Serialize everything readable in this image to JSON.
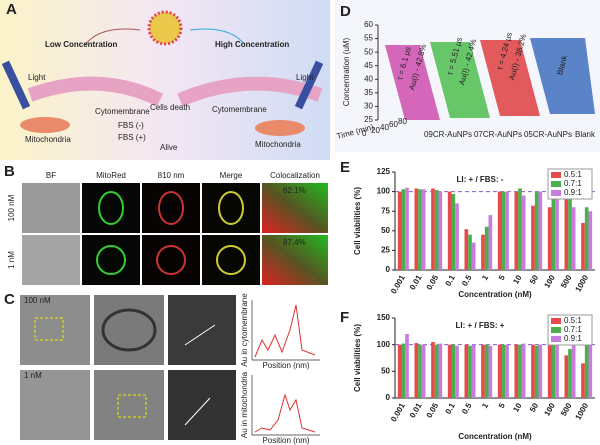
{
  "panel_a": {
    "label": "A",
    "low": "Low Concentration",
    "high": "High Concentration",
    "cytomembrane_left": "Cytomembrane",
    "cytomembrane_right": "Cytomembrane",
    "mito_left": "Mitochondria",
    "mito_right": "Mitochondria",
    "cells_death": "Cells death",
    "alive": "Alive",
    "fbs_minus": "FBS (-)",
    "fbs_plus": "FBS (+)",
    "light_left": "Light",
    "light_right": "Light"
  },
  "panel_b": {
    "label": "B",
    "columns": [
      "BF",
      "MitoRed",
      "810 nm",
      "Merge",
      "Colocalization"
    ],
    "rows": [
      "100 nM",
      "1 nM"
    ],
    "colocalization": [
      "62.1%",
      "87.4%"
    ]
  },
  "panel_c": {
    "label": "C",
    "rows": [
      "100 nM",
      "1 nM"
    ],
    "plot_ylabels": [
      "Au in cytomembrane",
      "Au in mitochondria"
    ],
    "plot_xlabel": "Position (nm)"
  },
  "panel_d": {
    "label": "D",
    "ylabel": "Concentration (uM)",
    "xlabel": "Time (min)",
    "ylim": [
      25,
      60
    ],
    "yticks": [
      25,
      30,
      35,
      40,
      45,
      50,
      55,
      60
    ],
    "time_ticks": [
      0,
      20,
      40,
      60,
      80
    ],
    "samples": [
      "09CR-AuNPs",
      "07CR-AuNPs",
      "05CR-AuNPs",
      "Blank"
    ],
    "lifetimes": [
      "τ = 6.1 μs",
      "τ = 5.51 μs",
      "τ = 4.24 μs"
    ],
    "au_fractions": [
      "Au(I) - 42.8%",
      "Au(I) - 42.4%",
      "Au(I) - 38.2%"
    ]
  },
  "chart_data": [
    {
      "type": "bar",
      "panel_label": "E",
      "title": "LI: + / FBS: -",
      "y_label": "Cell viabilities (%)",
      "x_label": "Concentration (nM)",
      "categories": [
        "0.001",
        "0.01",
        "0.05",
        "0.1",
        "0.5",
        "1",
        "5",
        "10",
        "50",
        "100",
        "500",
        "1000"
      ],
      "series": [
        {
          "name": "0.5:1",
          "color": "#e8494a",
          "values": [
            100,
            104,
            104,
            100,
            52,
            45,
            100,
            100,
            82,
            80,
            95,
            60
          ]
        },
        {
          "name": "0.7:1",
          "color": "#4cae4c",
          "values": [
            103,
            103,
            102,
            97,
            45,
            55,
            100,
            104,
            100,
            100,
            90,
            80
          ]
        },
        {
          "name": "0.9:1",
          "color": "#c77ddd",
          "values": [
            105,
            103,
            100,
            85,
            35,
            70,
            100,
            95,
            100,
            95,
            80,
            75
          ]
        }
      ],
      "ylim": [
        0,
        125
      ],
      "yticks": [
        0,
        25,
        50,
        75,
        100,
        125
      ],
      "reference_line": 100
    },
    {
      "type": "bar",
      "panel_label": "F",
      "title": "LI: + / FBS: +",
      "y_label": "Cell viabilities (%)",
      "x_label": "Concentration (nM)",
      "categories": [
        "0.001",
        "0.01",
        "0.05",
        "0.1",
        "0.5",
        "1",
        "5",
        "10",
        "50",
        "100",
        "500",
        "1000"
      ],
      "series": [
        {
          "name": "0.5:1",
          "color": "#e8494a",
          "values": [
            100,
            103,
            105,
            100,
            100,
            100,
            100,
            100,
            100,
            100,
            80,
            65
          ]
        },
        {
          "name": "0.7:1",
          "color": "#4cae4c",
          "values": [
            102,
            100,
            100,
            100,
            98,
            100,
            100,
            100,
            98,
            100,
            92,
            100
          ]
        },
        {
          "name": "0.9:1",
          "color": "#c77ddd",
          "values": [
            120,
            100,
            102,
            98,
            100,
            98,
            100,
            102,
            100,
            100,
            100,
            100
          ]
        }
      ],
      "ylim": [
        0,
        150
      ],
      "yticks": [
        0,
        50,
        100,
        150
      ],
      "reference_line": 100
    }
  ]
}
